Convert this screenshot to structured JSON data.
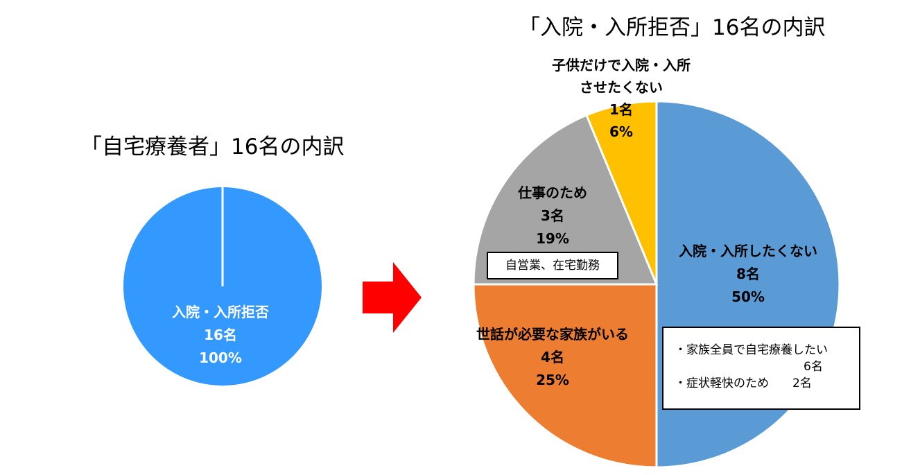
{
  "chart_data": [
    {
      "type": "pie",
      "title": "「自宅療養者」16名の内訳",
      "slices": [
        {
          "name": "入院・入所拒否",
          "count": "16名",
          "percent": "100%",
          "value": 16,
          "color": "#3399FF"
        }
      ]
    },
    {
      "type": "pie",
      "title": "「入院・入所拒否」16名の内訳",
      "slices": [
        {
          "name": "入院・入所したくない",
          "count": "8名",
          "percent": "50%",
          "value": 8,
          "color": "#5B9BD5",
          "note": [
            "・家族全員で自宅療養したい",
            "6名",
            "・症状軽快のため　　2名"
          ]
        },
        {
          "name": "世話が必要な家族がいる",
          "count": "4名",
          "percent": "25%",
          "value": 4,
          "color": "#ED7D31"
        },
        {
          "name": "仕事のため",
          "count": "3名",
          "percent": "19%",
          "value": 3,
          "color": "#A5A5A5",
          "note": [
            "自営業、在宅勤務"
          ]
        },
        {
          "name": "子供だけで入院・入所\nさせたくない",
          "count": "1名",
          "percent": "6%",
          "value": 1,
          "color": "#FFC000"
        }
      ]
    }
  ],
  "arrow_color": "#FF0000"
}
